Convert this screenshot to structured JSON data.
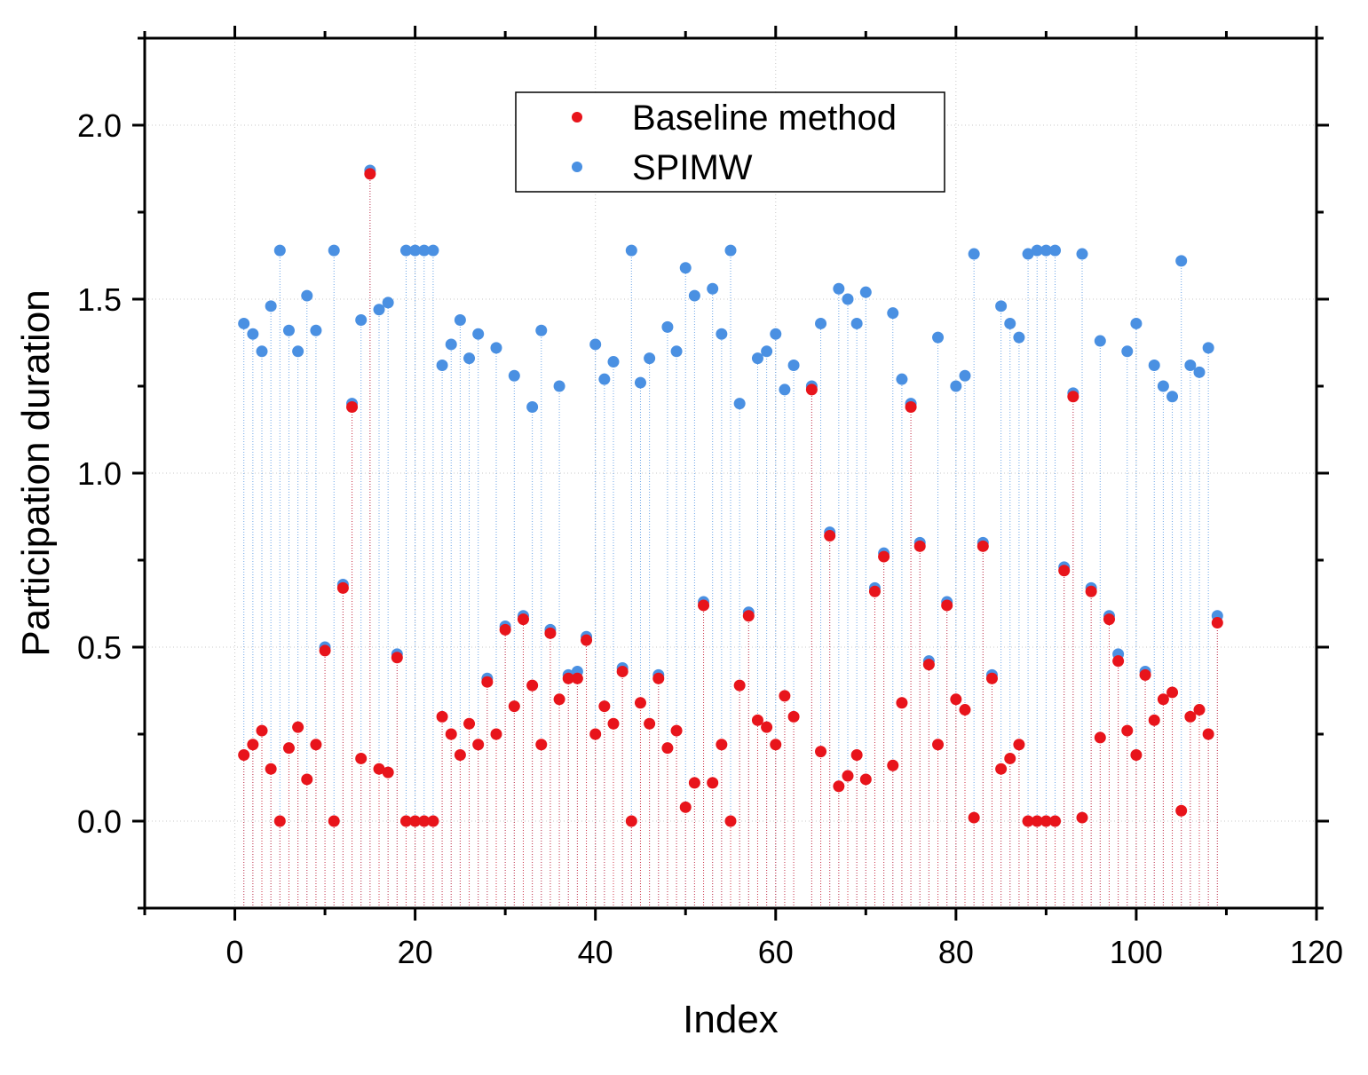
{
  "chart_data": {
    "type": "scatter",
    "title": "",
    "xlabel": "Index",
    "ylabel": "Participation duration",
    "xlim": [
      -10,
      120
    ],
    "ylim": [
      -0.25,
      2.25
    ],
    "xticks": [
      0,
      20,
      40,
      60,
      80,
      100,
      120
    ],
    "yticks": [
      0.0,
      0.5,
      1.0,
      1.5,
      2.0
    ],
    "xtick_labels": [
      "0",
      "20",
      "40",
      "60",
      "80",
      "100",
      "120"
    ],
    "ytick_labels": [
      "0.0",
      "0.5",
      "1.0",
      "1.5",
      "2.0"
    ],
    "grid": true,
    "drop_lines": true,
    "legend_position": "top-center",
    "colors": {
      "baseline": "#e8141b",
      "spimw": "#4a90e2"
    },
    "x": [
      1,
      2,
      3,
      4,
      5,
      6,
      7,
      8,
      9,
      10,
      11,
      12,
      13,
      14,
      15,
      16,
      17,
      18,
      19,
      20,
      21,
      22,
      23,
      24,
      25,
      26,
      27,
      28,
      29,
      30,
      31,
      32,
      33,
      34,
      35,
      36,
      37,
      38,
      39,
      40,
      41,
      42,
      43,
      44,
      45,
      46,
      47,
      48,
      49,
      50,
      51,
      52,
      53,
      54,
      55,
      56,
      57,
      58,
      59,
      60,
      61,
      62,
      63,
      64,
      65,
      66,
      67,
      68,
      69,
      70,
      71,
      72,
      73,
      74,
      75,
      76,
      77,
      78,
      79,
      80,
      81,
      82,
      83,
      84,
      85,
      86,
      87,
      88,
      89,
      90,
      91,
      92,
      93,
      94,
      95,
      96,
      97,
      98,
      99,
      100,
      101,
      102,
      103,
      104,
      105,
      106,
      107,
      108,
      109
    ],
    "series": [
      {
        "name": "Baseline method",
        "values": [
          0.19,
          0.22,
          0.26,
          0.15,
          0.0,
          0.21,
          0.27,
          0.12,
          0.22,
          0.49,
          0.0,
          0.67,
          1.19,
          0.18,
          1.86,
          0.15,
          0.14,
          0.47,
          0.0,
          0.0,
          0.0,
          0.0,
          0.3,
          0.25,
          0.19,
          0.28,
          0.22,
          0.4,
          0.25,
          0.55,
          0.33,
          0.58,
          0.39,
          0.22,
          0.54,
          0.35,
          0.41,
          0.41,
          0.52,
          0.25,
          0.33,
          0.28,
          0.43,
          0.0,
          0.34,
          0.28,
          0.41,
          0.21,
          0.26,
          0.04,
          0.11,
          0.62,
          0.11,
          0.22,
          0.0,
          0.39,
          0.59,
          0.29,
          0.27,
          0.22,
          0.36,
          0.3,
          null,
          1.24,
          0.2,
          0.82,
          0.1,
          0.13,
          0.19,
          0.12,
          0.66,
          0.76,
          0.16,
          0.34,
          1.19,
          0.79,
          0.45,
          0.22,
          0.62,
          0.35,
          0.32,
          0.01,
          0.79,
          0.41,
          0.15,
          0.18,
          0.22,
          0.0,
          0.0,
          0.0,
          0.0,
          0.72,
          1.22,
          0.01,
          0.66,
          0.24,
          0.58,
          0.46,
          0.26,
          0.19,
          0.42,
          0.29,
          0.35,
          0.37,
          0.03,
          0.3,
          0.32,
          0.25,
          0.57
        ]
      },
      {
        "name": "SPIMW",
        "values": [
          1.43,
          1.4,
          1.35,
          1.48,
          1.64,
          1.41,
          1.35,
          1.51,
          1.41,
          0.5,
          1.64,
          0.68,
          1.2,
          1.44,
          1.87,
          1.47,
          1.49,
          0.48,
          1.64,
          1.64,
          1.64,
          1.64,
          1.31,
          1.37,
          1.44,
          1.33,
          1.4,
          0.41,
          1.36,
          0.56,
          1.28,
          0.59,
          1.19,
          1.41,
          0.55,
          1.25,
          0.42,
          0.43,
          0.53,
          1.37,
          1.27,
          1.32,
          0.44,
          1.64,
          1.26,
          1.33,
          0.42,
          1.42,
          1.35,
          1.59,
          1.51,
          0.63,
          1.53,
          1.4,
          1.64,
          1.2,
          0.6,
          1.33,
          1.35,
          1.4,
          1.24,
          1.31,
          null,
          1.25,
          1.43,
          0.83,
          1.53,
          1.5,
          1.43,
          1.52,
          0.67,
          0.77,
          1.46,
          1.27,
          1.2,
          0.8,
          0.46,
          1.39,
          0.63,
          1.25,
          1.28,
          1.63,
          0.8,
          0.42,
          1.48,
          1.43,
          1.39,
          1.63,
          1.64,
          1.64,
          1.64,
          0.73,
          1.23,
          1.63,
          0.67,
          1.38,
          0.59,
          0.48,
          1.35,
          1.43,
          0.43,
          1.31,
          1.25,
          1.22,
          1.61,
          1.31,
          1.29,
          1.36,
          0.59
        ]
      }
    ]
  }
}
